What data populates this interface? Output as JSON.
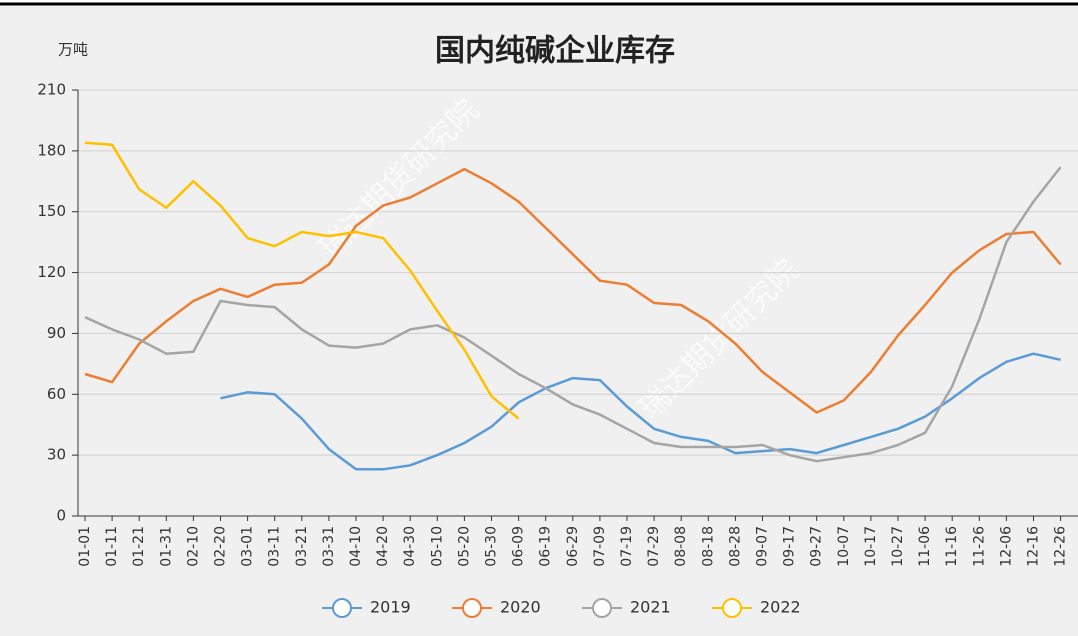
{
  "chart_data": {
    "type": "line",
    "title": "国内纯碱企业库存",
    "y_label": "万吨",
    "watermark": "瑞达期货研究院",
    "categories": [
      "01-01",
      "01-11",
      "01-21",
      "01-31",
      "02-10",
      "02-20",
      "03-01",
      "03-11",
      "03-21",
      "03-31",
      "04-10",
      "04-20",
      "04-30",
      "05-10",
      "05-20",
      "05-30",
      "06-09",
      "06-19",
      "06-29",
      "07-09",
      "07-19",
      "07-29",
      "08-08",
      "08-18",
      "08-28",
      "09-07",
      "09-17",
      "09-27",
      "10-07",
      "10-17",
      "10-27",
      "11-06",
      "11-16",
      "11-26",
      "12-06",
      "12-16",
      "12-26"
    ],
    "series": [
      {
        "name": "2019",
        "color": "#5b9bd5",
        "values": [
          null,
          null,
          null,
          null,
          null,
          58,
          61,
          60,
          48,
          33,
          23,
          23,
          25,
          30,
          36,
          44,
          56,
          63,
          68,
          67,
          54,
          43,
          39,
          37,
          31,
          32,
          33,
          31,
          35,
          39,
          43,
          49,
          58,
          68,
          76,
          80,
          77
        ]
      },
      {
        "name": "2020",
        "color": "#ed7d31",
        "values": [
          70,
          66,
          85,
          96,
          106,
          112,
          108,
          114,
          115,
          124,
          143,
          153,
          157,
          164,
          171,
          164,
          155,
          142,
          129,
          116,
          114,
          105,
          104,
          96,
          85,
          71,
          61,
          51,
          57,
          71,
          89,
          104,
          120,
          131,
          139,
          140,
          124
        ]
      },
      {
        "name": "2021",
        "color": "#a5a5a5",
        "values": [
          98,
          92,
          87,
          80,
          81,
          106,
          104,
          103,
          92,
          84,
          83,
          85,
          92,
          94,
          88,
          79,
          70,
          63,
          55,
          50,
          43,
          36,
          34,
          34,
          34,
          35,
          30,
          27,
          29,
          31,
          35,
          41,
          64,
          97,
          135,
          155,
          172
        ]
      },
      {
        "name": "2022",
        "color": "#ffc000",
        "values": [
          184,
          183,
          161,
          152,
          165,
          153,
          137,
          133,
          140,
          138,
          140,
          137,
          121,
          101,
          82,
          59,
          48,
          null,
          null,
          null,
          null,
          null,
          null,
          null,
          null,
          null,
          null,
          null,
          null,
          null,
          null,
          null,
          null,
          null,
          null,
          null,
          null
        ]
      }
    ],
    "ylim": [
      0,
      210
    ],
    "yticks": [
      0,
      30,
      60,
      90,
      120,
      150,
      180,
      210
    ],
    "grid": true
  }
}
